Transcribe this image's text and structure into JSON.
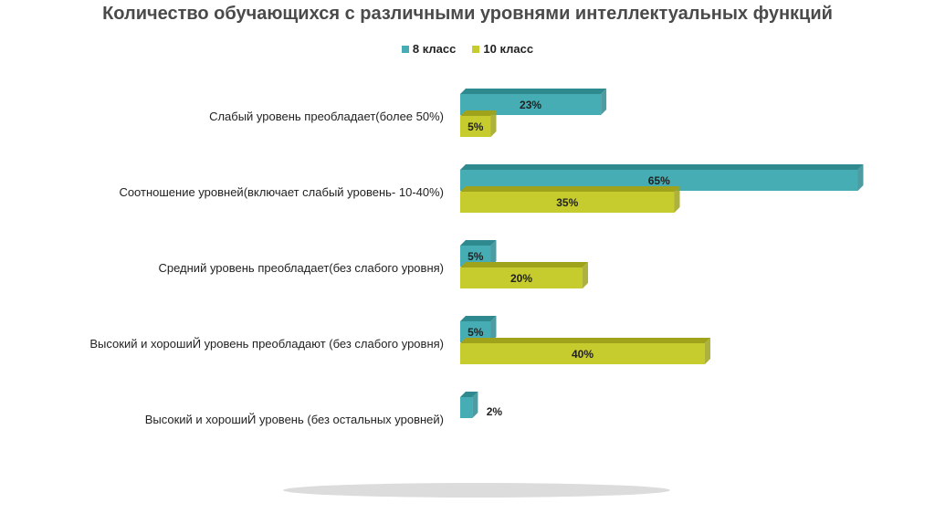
{
  "chart_data": {
    "type": "bar",
    "orientation": "horizontal",
    "title": "Количество обучающихся с различными уровнями интеллектуальных функций",
    "categories": [
      "Слабый уровень преобладает(более 50%)",
      "Соотношение уровней(включает слабый уровень- 10-40%)",
      "Средний уровень преобладает(без слабого уровня)",
      "Высокий и хорошиЙ уровень преобладают (без слабого уровня)",
      "Высокий и хорошиЙ уровень  (без остальных уровней)"
    ],
    "series": [
      {
        "name": "8 класс",
        "values": [
          23,
          65,
          5,
          5,
          2
        ],
        "labels": [
          "23%",
          "65%",
          "5%",
          "5%",
          "2%"
        ],
        "color": "#45adb3",
        "top_color": "#2f8a90"
      },
      {
        "name": "10 класс",
        "values": [
          5,
          35,
          20,
          40,
          null
        ],
        "labels": [
          "5%",
          "35%",
          "20%",
          "40%",
          ""
        ],
        "color": "#c6cc2e",
        "top_color": "#9fa31c"
      }
    ],
    "unit": "%",
    "legend_position": "top",
    "grid": false
  }
}
